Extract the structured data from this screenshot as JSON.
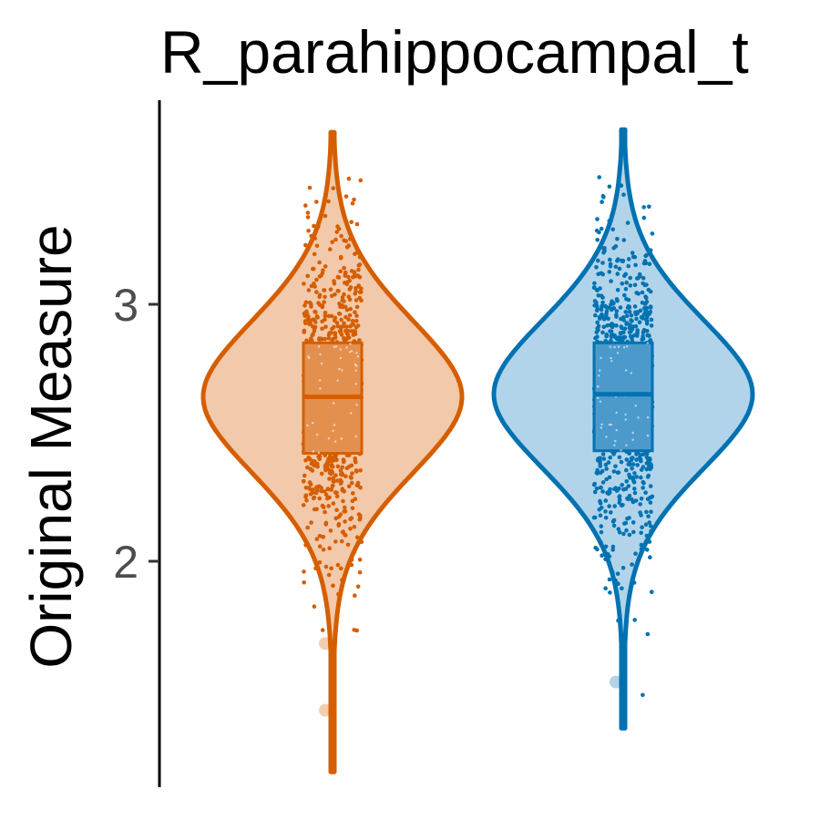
{
  "chart_data": {
    "type": "violin",
    "title": "R_parahippocampal_t",
    "xlabel": "",
    "ylabel": "Original Measure",
    "ylim": [
      1.1,
      3.75
    ],
    "yticks": [
      2,
      3
    ],
    "ytick_labels": [
      "2",
      "3"
    ],
    "grid": false,
    "legend": "none",
    "series": [
      {
        "color": "#D55E00",
        "fill": "#F2C9AA",
        "box_fill": "#E3904F",
        "min": 1.18,
        "max": 3.67,
        "q1": 2.42,
        "median": 2.64,
        "q3": 2.85,
        "outliers": [
          1.42,
          1.68
        ]
      },
      {
        "color": "#0072B2",
        "fill": "#B2D4EA",
        "box_fill": "#4B9ACB",
        "min": 1.35,
        "max": 3.68,
        "q1": 2.43,
        "median": 2.65,
        "q3": 2.85,
        "outliers": [
          1.53
        ]
      }
    ]
  }
}
